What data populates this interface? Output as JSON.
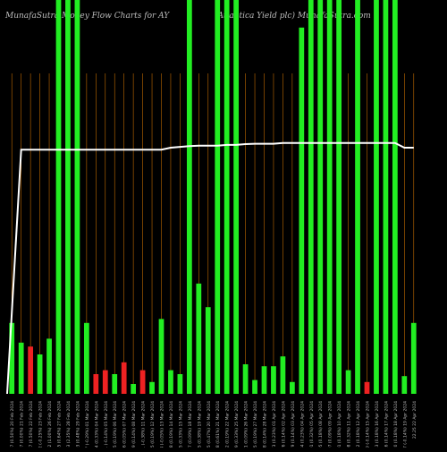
{
  "chart_data": {
    "type": "bar",
    "title_left": "MunafaSutra  Money Flow  Charts for AY",
    "title_right": "(Atlantica Yield plc) MunafaSutra.com",
    "categories": [
      "20 Feb 2024",
      "21 Feb 2024",
      "22 Feb 2024",
      "23 Feb 2024",
      "26 Feb 2024",
      "27 Feb 2024",
      "28 Feb 2024",
      "29 Feb 2024",
      "01 Mar 2024",
      "04 Mar 2024",
      "05 Mar 2024",
      "06 Mar 2024",
      "07 Mar 2024",
      "08 Mar 2024",
      "11 Mar 2024",
      "12 Mar 2024",
      "13 Mar 2024",
      "14 Mar 2024",
      "15 Mar 2024",
      "18 Mar 2024",
      "19 Mar 2024",
      "20 Mar 2024",
      "21 Mar 2024",
      "22 Mar 2024",
      "25 Mar 2024",
      "26 Mar 2024",
      "27 Mar 2024",
      "28 Mar 2024",
      "01 Apr 2024",
      "02 Apr 2024",
      "03 Apr 2024",
      "04 Apr 2024",
      "05 Apr 2024",
      "08 Apr 2024",
      "09 Apr 2024",
      "10 Apr 2024",
      "11 Apr 2024",
      "12 Apr 2024",
      "15 Apr 2024",
      "16 Apr 2024",
      "17 Apr 2024",
      "18 Apr 2024",
      "19 Apr 2024",
      "22 Apr 2024"
    ],
    "x_labels": [
      "20.07 (0.50%)",
      "20.07 (0.00%)",
      "20.17 (0.50%)",
      "20.12 (-0.25%)",
      "20.32 (1.00%)",
      "20.45 (0.64%)",
      "20.93 (2.35%)",
      "21.03 (0.48%)",
      "20.97 (-0.29%)",
      "21.04 (0.33%)",
      "21.01 (-0.14%)",
      "21.05 (0.19%)",
      "21.06 (0.05%)",
      "21.09 (0.14%)",
      "21.01 (-0.38%)",
      "21.05 (0.19%)",
      "21.04 (-0.05%)",
      "21.08 (0.19%)",
      "21.15 (0.33%)",
      "21.17 (0.09%)",
      "21.25 (0.38%)",
      "21.35 (0.47%)",
      "21.48 (0.61%)",
      "21.52 (0.19%)",
      "21.59 (0.33%)",
      "21.61 (0.09%)",
      "21.65 (0.19%)",
      "21.68 (0.14%)",
      "21.73 (0.23%)",
      "21.76 (0.14%)",
      "21.79 (0.14%)",
      "21.84 (0.23%)",
      "21.91 (0.32%)",
      "21.95 (0.18%)",
      "21.97 (0.09%)",
      "22.01 (0.18%)",
      "22.08 (0.32%)",
      "22.12 (0.18%)",
      "22.09 (-0.14%)",
      "22.13 (0.18%)",
      "22.16 (0.14%)",
      "22.20 (0.18%)",
      "22.17 (-0.14%)",
      "22.25"
    ],
    "colors": [
      "green",
      "green",
      "red",
      "green",
      "green",
      "green",
      "green",
      "green",
      "green",
      "red",
      "red",
      "green",
      "red",
      "green",
      "red",
      "green",
      "green",
      "green",
      "green",
      "green",
      "green",
      "green",
      "green",
      "green",
      "green",
      "green",
      "green",
      "green",
      "green",
      "green",
      "green",
      "green",
      "green",
      "green",
      "green",
      "green",
      "green",
      "green",
      "red",
      "green",
      "green",
      "green",
      "green",
      "green"
    ],
    "values": [
      18,
      13,
      12,
      10,
      14,
      100,
      100,
      100,
      18,
      5,
      6,
      5,
      8,
      2.5,
      6,
      3,
      19,
      6,
      5,
      100,
      28,
      22,
      100,
      100,
      100,
      7.5,
      3.5,
      7,
      7,
      9.5,
      3,
      93,
      100,
      100,
      100,
      100,
      6,
      100,
      3,
      100,
      100,
      100,
      4.5,
      18
    ],
    "close_line": [
      0,
      62,
      62,
      62,
      62,
      62,
      62,
      62,
      62,
      62,
      62,
      62,
      62,
      62,
      62,
      62,
      62,
      62.5,
      62.7,
      62.9,
      63,
      63,
      63,
      63.2,
      63.2,
      63.4,
      63.5,
      63.5,
      63.5,
      63.7,
      63.7,
      63.7,
      63.7,
      63.7,
      63.7,
      63.7,
      63.7,
      63.7,
      63.7,
      63.7,
      63.7,
      63.7,
      62.5,
      62.5
    ],
    "ylim": [
      0,
      100
    ],
    "grid": true,
    "colors_hex": {
      "green": "#22ee22",
      "red": "#ee2222",
      "grid": "#c06a00",
      "line": "#ffffff",
      "text": "#bbbbbb"
    }
  }
}
